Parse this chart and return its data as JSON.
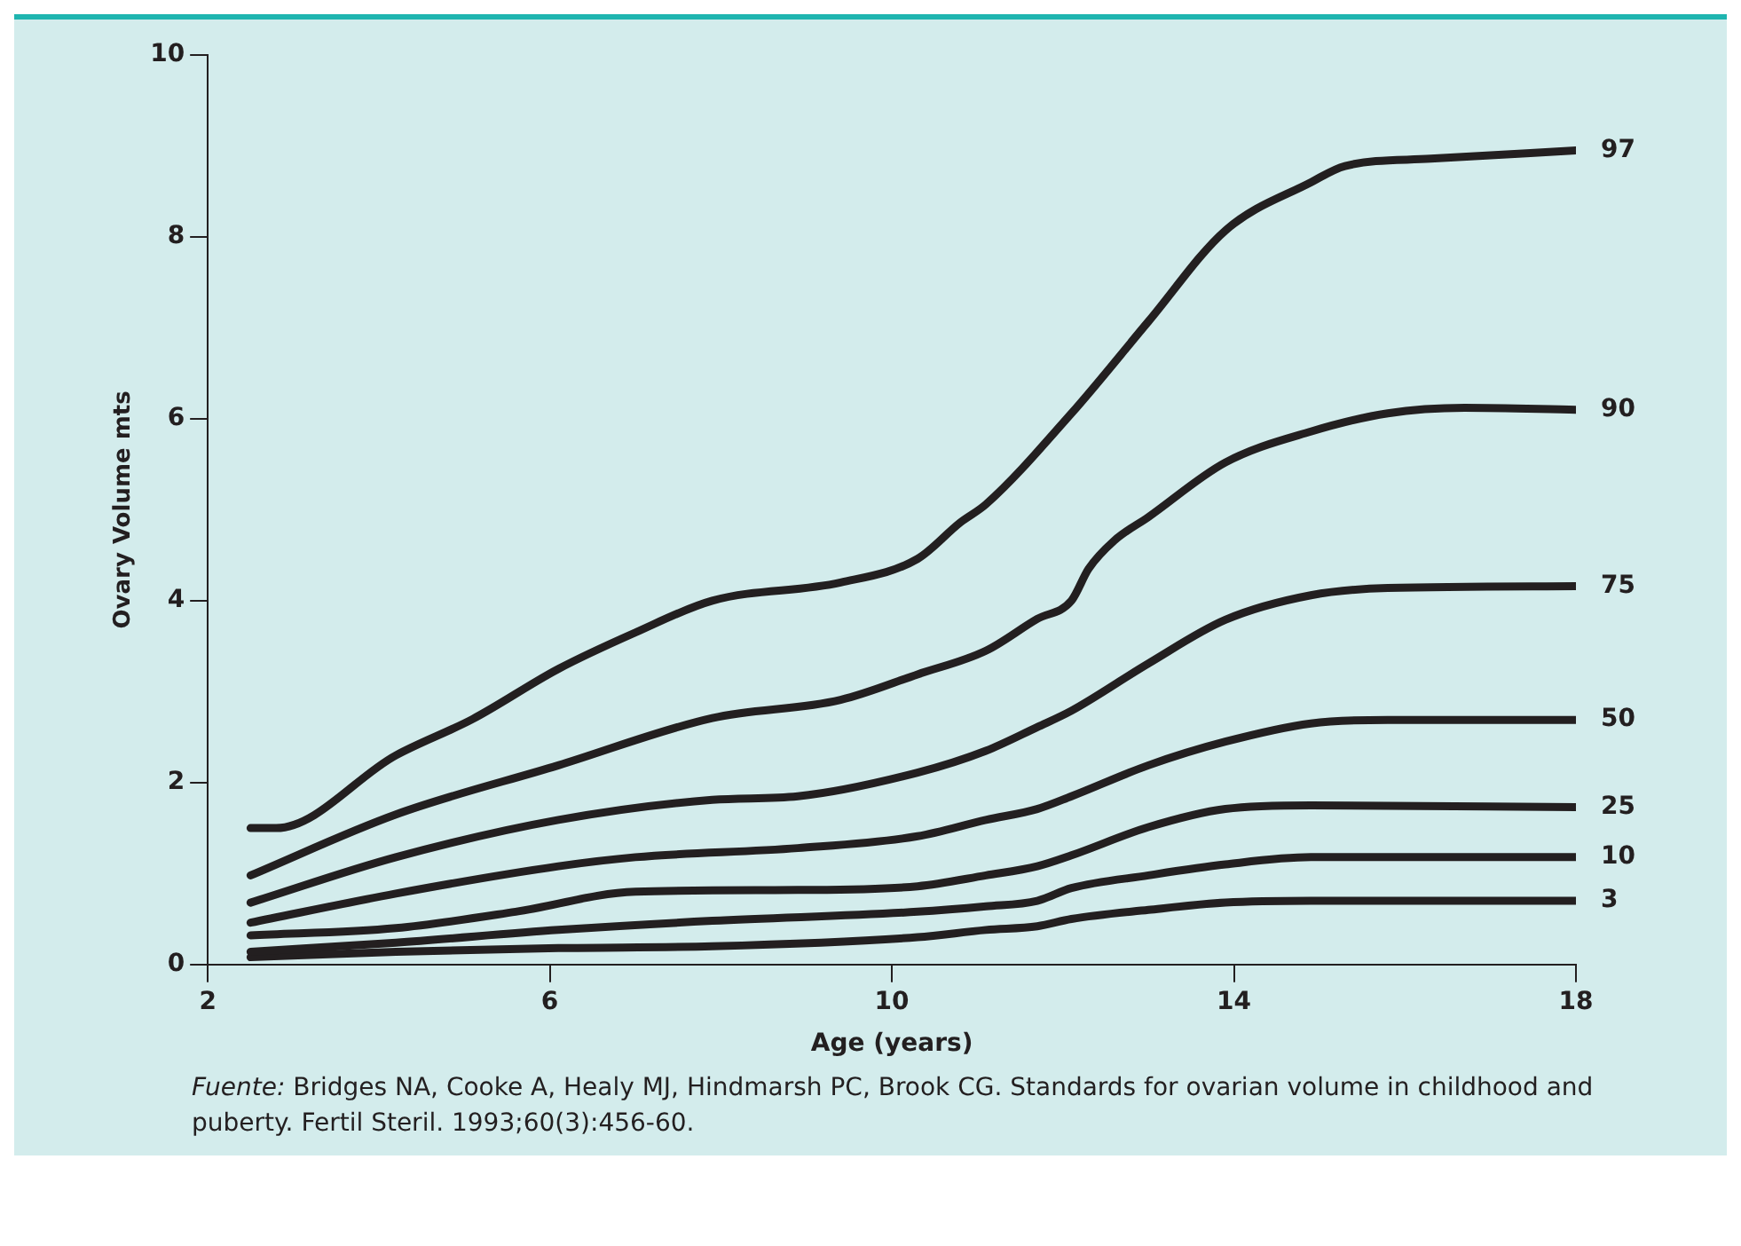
{
  "chart_data": {
    "type": "line",
    "xlabel": "Age (years)",
    "ylabel": "Ovary Volume mts",
    "xlim": [
      2,
      18
    ],
    "xticks": [
      2,
      6,
      10,
      14,
      18
    ],
    "ylim": [
      0,
      10
    ],
    "yticks": [
      0,
      2,
      4,
      6,
      8,
      10
    ],
    "grid": false,
    "legend": false,
    "marker": "none",
    "line_style": "solid",
    "annotations": [
      "Fuente: Bridges NA, Cooke A, Healy MJ, Hindmarsh PC, Brook CG. Standards for ovarian volume in childhood and puberty. Fertil Steril. 1993;60(3):456-60."
    ],
    "series": [
      {
        "name": "97",
        "color": "#231f20",
        "x": [
          2.5,
          2.8,
          4.2,
          5.1,
          6.1,
          7,
          7.9,
          9.4,
          10.3,
          10.8,
          11.1,
          12.1,
          13,
          13.9,
          14.9,
          15.3,
          16.3,
          18
        ],
        "values": [
          1.5,
          1.5,
          2.3,
          2.7,
          3.25,
          3.65,
          4.0,
          4.2,
          4.46,
          4.86,
          5.06,
          6.06,
          7.07,
          8.07,
          8.6,
          8.78,
          8.86,
          8.95
        ]
      },
      {
        "name": "90",
        "color": "#231f20",
        "x": [
          2.5,
          4.2,
          6.1,
          7.9,
          9.4,
          10.3,
          11.1,
          11.7,
          12.1,
          12.3,
          12.6,
          13,
          13.9,
          14.9,
          15.8,
          16.7,
          18
        ],
        "values": [
          0.98,
          1.65,
          2.19,
          2.71,
          2.91,
          3.19,
          3.45,
          3.8,
          4.0,
          4.35,
          4.66,
          4.92,
          5.52,
          5.86,
          6.06,
          6.12,
          6.1
        ]
      },
      {
        "name": "75",
        "color": "#231f20",
        "x": [
          2.5,
          4.2,
          6.1,
          7.9,
          8.9,
          10.3,
          11.1,
          11.7,
          12.1,
          13,
          13.9,
          14.9,
          15.8,
          18
        ],
        "values": [
          0.68,
          1.18,
          1.59,
          1.81,
          1.85,
          2.11,
          2.35,
          2.61,
          2.79,
          3.31,
          3.79,
          4.06,
          4.14,
          4.16
        ]
      },
      {
        "name": "50",
        "color": "#231f20",
        "x": [
          2.5,
          4.2,
          6.1,
          7,
          8.9,
          10.3,
          11.1,
          11.7,
          12.1,
          13,
          13.9,
          14.9,
          15.8,
          18
        ],
        "values": [
          0.46,
          0.78,
          1.08,
          1.18,
          1.28,
          1.41,
          1.59,
          1.71,
          1.85,
          2.19,
          2.45,
          2.65,
          2.69,
          2.69
        ]
      },
      {
        "name": "25",
        "color": "#231f20",
        "x": [
          2.5,
          4.2,
          5.6,
          7,
          8.9,
          10.3,
          11.1,
          11.7,
          12.1,
          13,
          13.9,
          14.9,
          18
        ],
        "values": [
          0.32,
          0.4,
          0.58,
          0.8,
          0.82,
          0.86,
          0.98,
          1.08,
          1.2,
          1.51,
          1.71,
          1.75,
          1.73
        ]
      },
      {
        "name": "10",
        "color": "#231f20",
        "x": [
          2.5,
          4.2,
          6.1,
          7.9,
          10.3,
          11.1,
          11.7,
          12.1,
          13,
          13.9,
          14.9,
          18
        ],
        "values": [
          0.14,
          0.24,
          0.38,
          0.48,
          0.58,
          0.64,
          0.7,
          0.84,
          0.98,
          1.1,
          1.18,
          1.18
        ]
      },
      {
        "name": "3",
        "color": "#231f20",
        "x": [
          2.5,
          4.2,
          6.1,
          7.9,
          10.3,
          11.1,
          11.7,
          12.1,
          13,
          13.9,
          14.9,
          18
        ],
        "values": [
          0.08,
          0.14,
          0.18,
          0.2,
          0.3,
          0.38,
          0.42,
          0.5,
          0.6,
          0.68,
          0.7,
          0.7
        ]
      }
    ]
  }
}
